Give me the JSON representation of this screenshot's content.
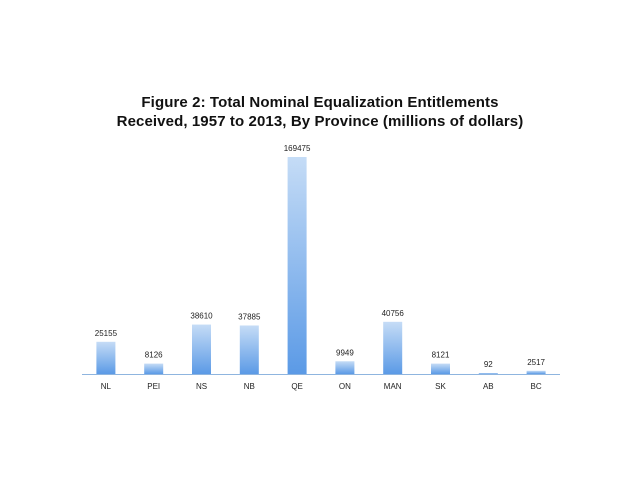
{
  "chart_data": {
    "type": "bar",
    "title": "Figure 2: Total Nominal Equalization Entitlements Received, 1957 to 2013, By Province (millions of dollars)",
    "title_lines": [
      "Figure 2: Total Nominal Equalization Entitlements",
      "Received, 1957 to 2013, By Province (millions of dollars)"
    ],
    "categories": [
      "NL",
      "PEI",
      "NS",
      "NB",
      "QE",
      "ON",
      "MAN",
      "SK",
      "AB",
      "BC"
    ],
    "values": [
      25155,
      8126,
      38610,
      37885,
      169475,
      9949,
      40756,
      8121,
      92,
      2517
    ],
    "xlabel": "",
    "ylabel": "",
    "ylim": [
      0,
      169475
    ],
    "colors": {
      "bar_top": "#c5dcf6",
      "bar_bottom": "#5b9ae6",
      "axis": "#8fb5df"
    }
  }
}
